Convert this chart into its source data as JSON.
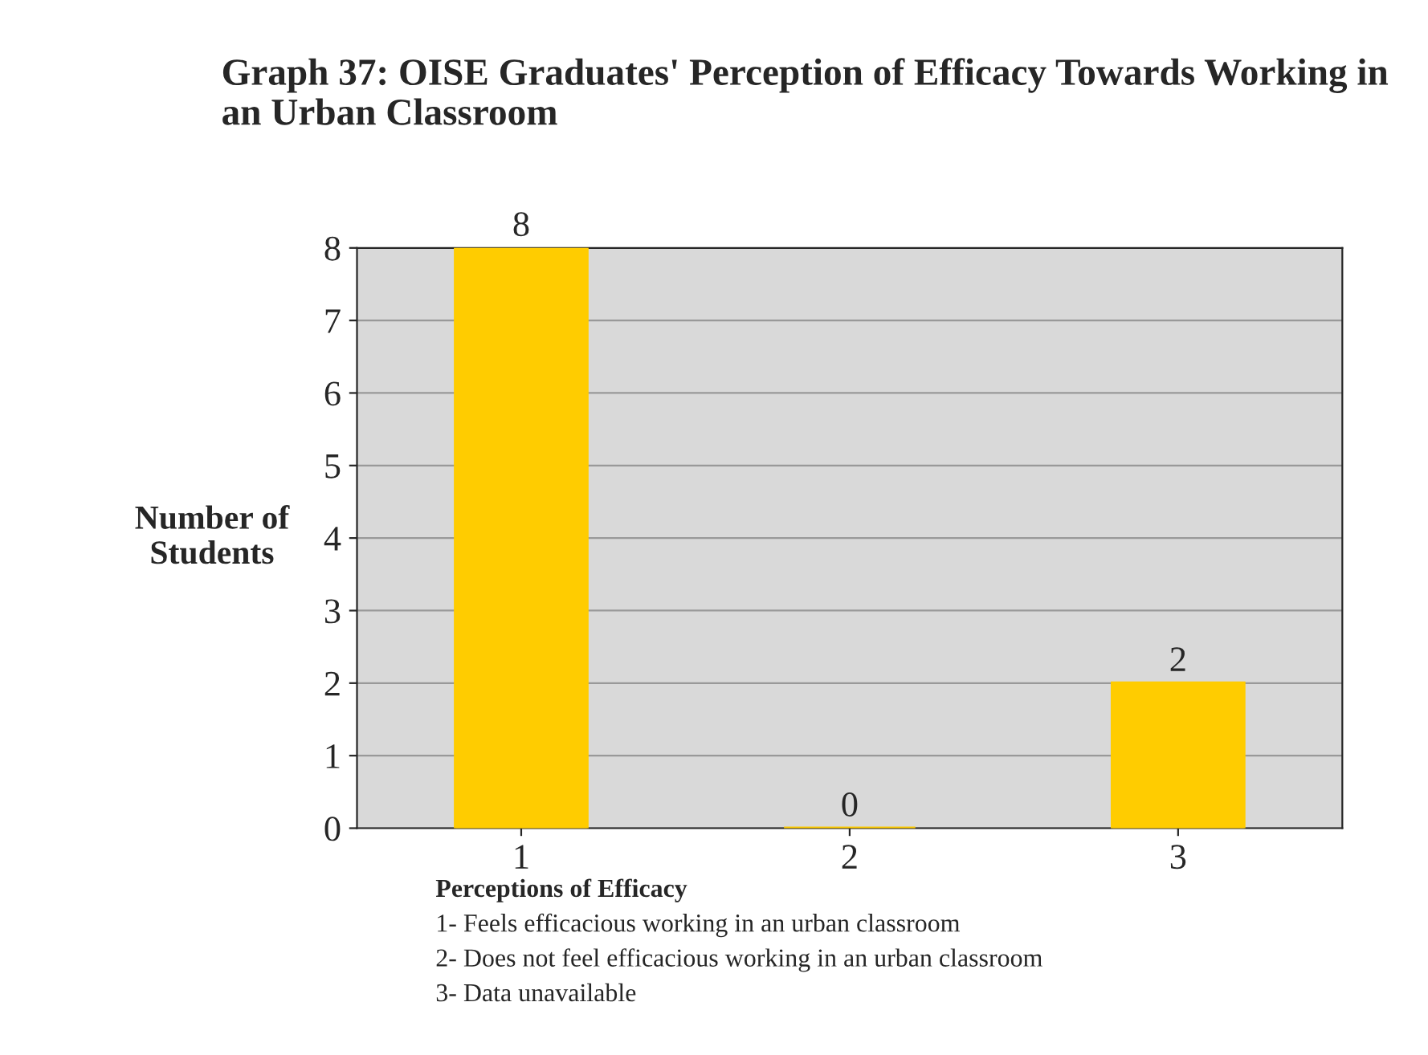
{
  "chart_data": {
    "type": "bar",
    "title": "Graph 37: OISE Graduates' Perception of Efficacy Towards Working in an Urban Classroom",
    "ylabel": "Number of Students",
    "categories": [
      "1",
      "2",
      "3"
    ],
    "values": [
      8,
      0,
      2
    ],
    "color": "#ffcc00",
    "ylim": [
      0,
      8
    ],
    "yticks": [
      0,
      1,
      2,
      3,
      4,
      5,
      6,
      7,
      8
    ],
    "grid": "y",
    "data_labels": true,
    "annotations": [
      "Perceptions of Efficacy",
      "1- Feels efficacious working in an urban classroom",
      "2- Does not feel efficacious working in an urban classroom",
      "3- Data unavailable"
    ]
  }
}
